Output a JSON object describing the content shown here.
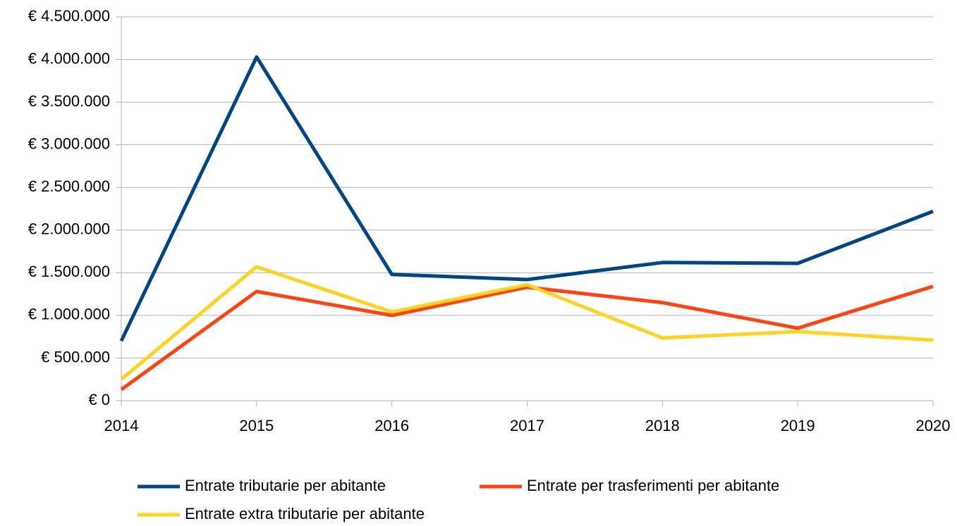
{
  "chart_data": {
    "type": "line",
    "categories": [
      "2014",
      "2015",
      "2016",
      "2017",
      "2018",
      "2019",
      "2020"
    ],
    "series": [
      {
        "name": "Entrate tributarie per abitante",
        "color": "#004586",
        "values": [
          700000,
          4030000,
          1480000,
          1420000,
          1620000,
          1610000,
          2220000
        ]
      },
      {
        "name": "Entrate per trasferimenti per abitante",
        "color": "#ff420e",
        "values": [
          130000,
          1280000,
          1000000,
          1330000,
          1150000,
          850000,
          1340000
        ]
      },
      {
        "name": "Entrate extra tributarie per abitante",
        "color": "#ffd320",
        "values": [
          250000,
          1570000,
          1040000,
          1360000,
          735000,
          810000,
          710000
        ]
      }
    ],
    "ylim": [
      0,
      4500000
    ],
    "yticks": [
      {
        "value": 0,
        "label": "€ 0"
      },
      {
        "value": 500000,
        "label": "€ 500.000"
      },
      {
        "value": 1000000,
        "label": "€ 1.000.000"
      },
      {
        "value": 1500000,
        "label": "€ 1.500.000"
      },
      {
        "value": 2000000,
        "label": "€ 2.000.000"
      },
      {
        "value": 2500000,
        "label": "€ 2.500.000"
      },
      {
        "value": 3000000,
        "label": "€ 3.000.000"
      },
      {
        "value": 3500000,
        "label": "€ 3.500.000"
      },
      {
        "value": 4000000,
        "label": "€ 4.000.000"
      },
      {
        "value": 4500000,
        "label": "€ 4.500.000"
      }
    ],
    "grid": true,
    "legend": "bottom"
  }
}
